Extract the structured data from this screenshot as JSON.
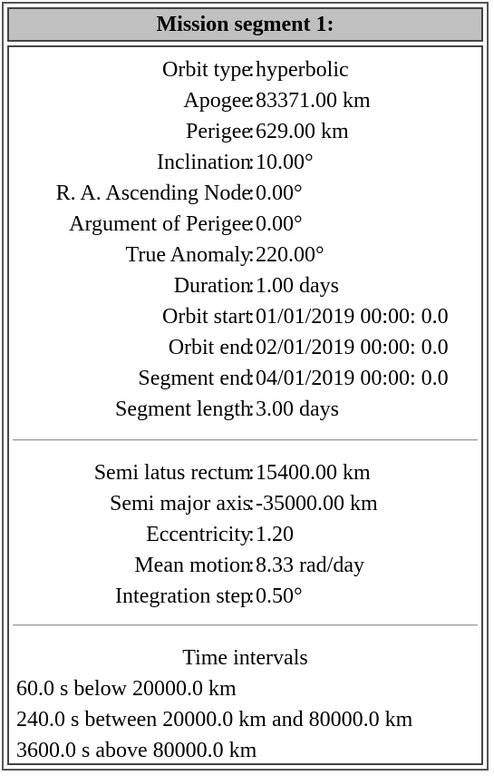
{
  "title": "Mission segment 1:",
  "orbit": [
    {
      "label": "Orbit type",
      "value": "hyperbolic"
    },
    {
      "label": "Apogee",
      "value": "83371.00 km"
    },
    {
      "label": "Perigee",
      "value": "629.00 km"
    },
    {
      "label": "Inclination",
      "value": "10.00°"
    },
    {
      "label": "R. A. Ascending Node",
      "value": "0.00°"
    },
    {
      "label": "Argument of Perigee",
      "value": "0.00°"
    },
    {
      "label": "True Anomaly",
      "value": "220.00°"
    },
    {
      "label": "Duration",
      "value": "1.00 days"
    },
    {
      "label": "Orbit start",
      "value": "01/01/2019 00:00: 0.0"
    },
    {
      "label": "Orbit end",
      "value": "02/01/2019 00:00: 0.0"
    },
    {
      "label": "Segment end",
      "value": "04/01/2019 00:00: 0.0"
    },
    {
      "label": "Segment length",
      "value": "3.00 days"
    }
  ],
  "derived": [
    {
      "label": "Semi latus rectum",
      "value": "15400.00 km"
    },
    {
      "label": "Semi major axis",
      "value": "-35000.00 km"
    },
    {
      "label": "Eccentricity",
      "value": "1.20"
    },
    {
      "label": "Mean motion",
      "value": "8.33 rad/day"
    },
    {
      "label": "Integration step",
      "value": "0.50°"
    }
  ],
  "intervals": {
    "title": "Time intervals",
    "items": [
      "60.0 s below 20000.0 km",
      "240.0 s between 20000.0 km and 80000.0 km",
      "3600.0 s above 80000.0 km"
    ]
  }
}
